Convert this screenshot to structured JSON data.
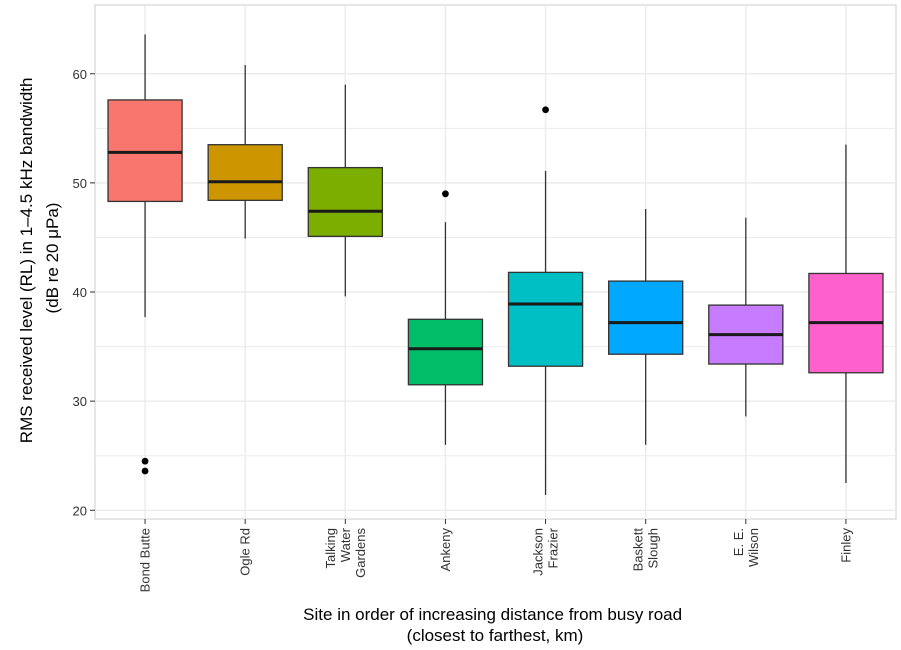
{
  "chart_data": {
    "type": "boxplot",
    "xlabel": [
      "Site in order of increasing distance from busy road",
      "(closest to farthest, km)"
    ],
    "ylabel": [
      "RMS received level (RL) in 1–4.5 kHz bandwidth",
      "(dB re 20 μPa)"
    ],
    "ylim": [
      19.2,
      66.3
    ],
    "yticks": [
      20,
      30,
      40,
      50,
      60
    ],
    "grid": true,
    "background": "#ffffff",
    "grid_color": "#ebebeb",
    "categories": [
      [
        "Bond Butte"
      ],
      [
        "Ogle Rd"
      ],
      [
        "Talking",
        "Water",
        "Gardens"
      ],
      [
        "Ankeny"
      ],
      [
        "Jackson",
        "Frazier"
      ],
      [
        "Baskett",
        "Slough"
      ],
      [
        "E. E.",
        "Wilson"
      ],
      [
        "Finley"
      ]
    ],
    "boxes": [
      {
        "min": 37.7,
        "q1": 48.3,
        "median": 52.8,
        "q3": 57.6,
        "max": 63.6,
        "outliers": [
          24.5,
          23.6
        ],
        "color": "#F8766D"
      },
      {
        "min": 44.9,
        "q1": 48.4,
        "median": 50.1,
        "q3": 53.5,
        "max": 60.8,
        "outliers": [],
        "color": "#CD9600"
      },
      {
        "min": 39.6,
        "q1": 45.1,
        "median": 47.4,
        "q3": 51.4,
        "max": 59.0,
        "outliers": [],
        "color": "#7CAE00"
      },
      {
        "min": 26.0,
        "q1": 31.5,
        "median": 34.8,
        "q3": 37.5,
        "max": 46.4,
        "outliers": [
          49.0
        ],
        "color": "#00BE67"
      },
      {
        "min": 21.4,
        "q1": 33.2,
        "median": 38.9,
        "q3": 41.8,
        "max": 51.1,
        "outliers": [
          56.7
        ],
        "color": "#00BFC4"
      },
      {
        "min": 26.0,
        "q1": 34.3,
        "median": 37.2,
        "q3": 41.0,
        "max": 47.6,
        "outliers": [],
        "color": "#00A9FF"
      },
      {
        "min": 28.6,
        "q1": 33.4,
        "median": 36.1,
        "q3": 38.8,
        "max": 46.8,
        "outliers": [],
        "color": "#C77CFF"
      },
      {
        "min": 22.5,
        "q1": 32.6,
        "median": 37.2,
        "q3": 41.7,
        "max": 53.5,
        "outliers": [],
        "color": "#FF61CC"
      }
    ]
  }
}
